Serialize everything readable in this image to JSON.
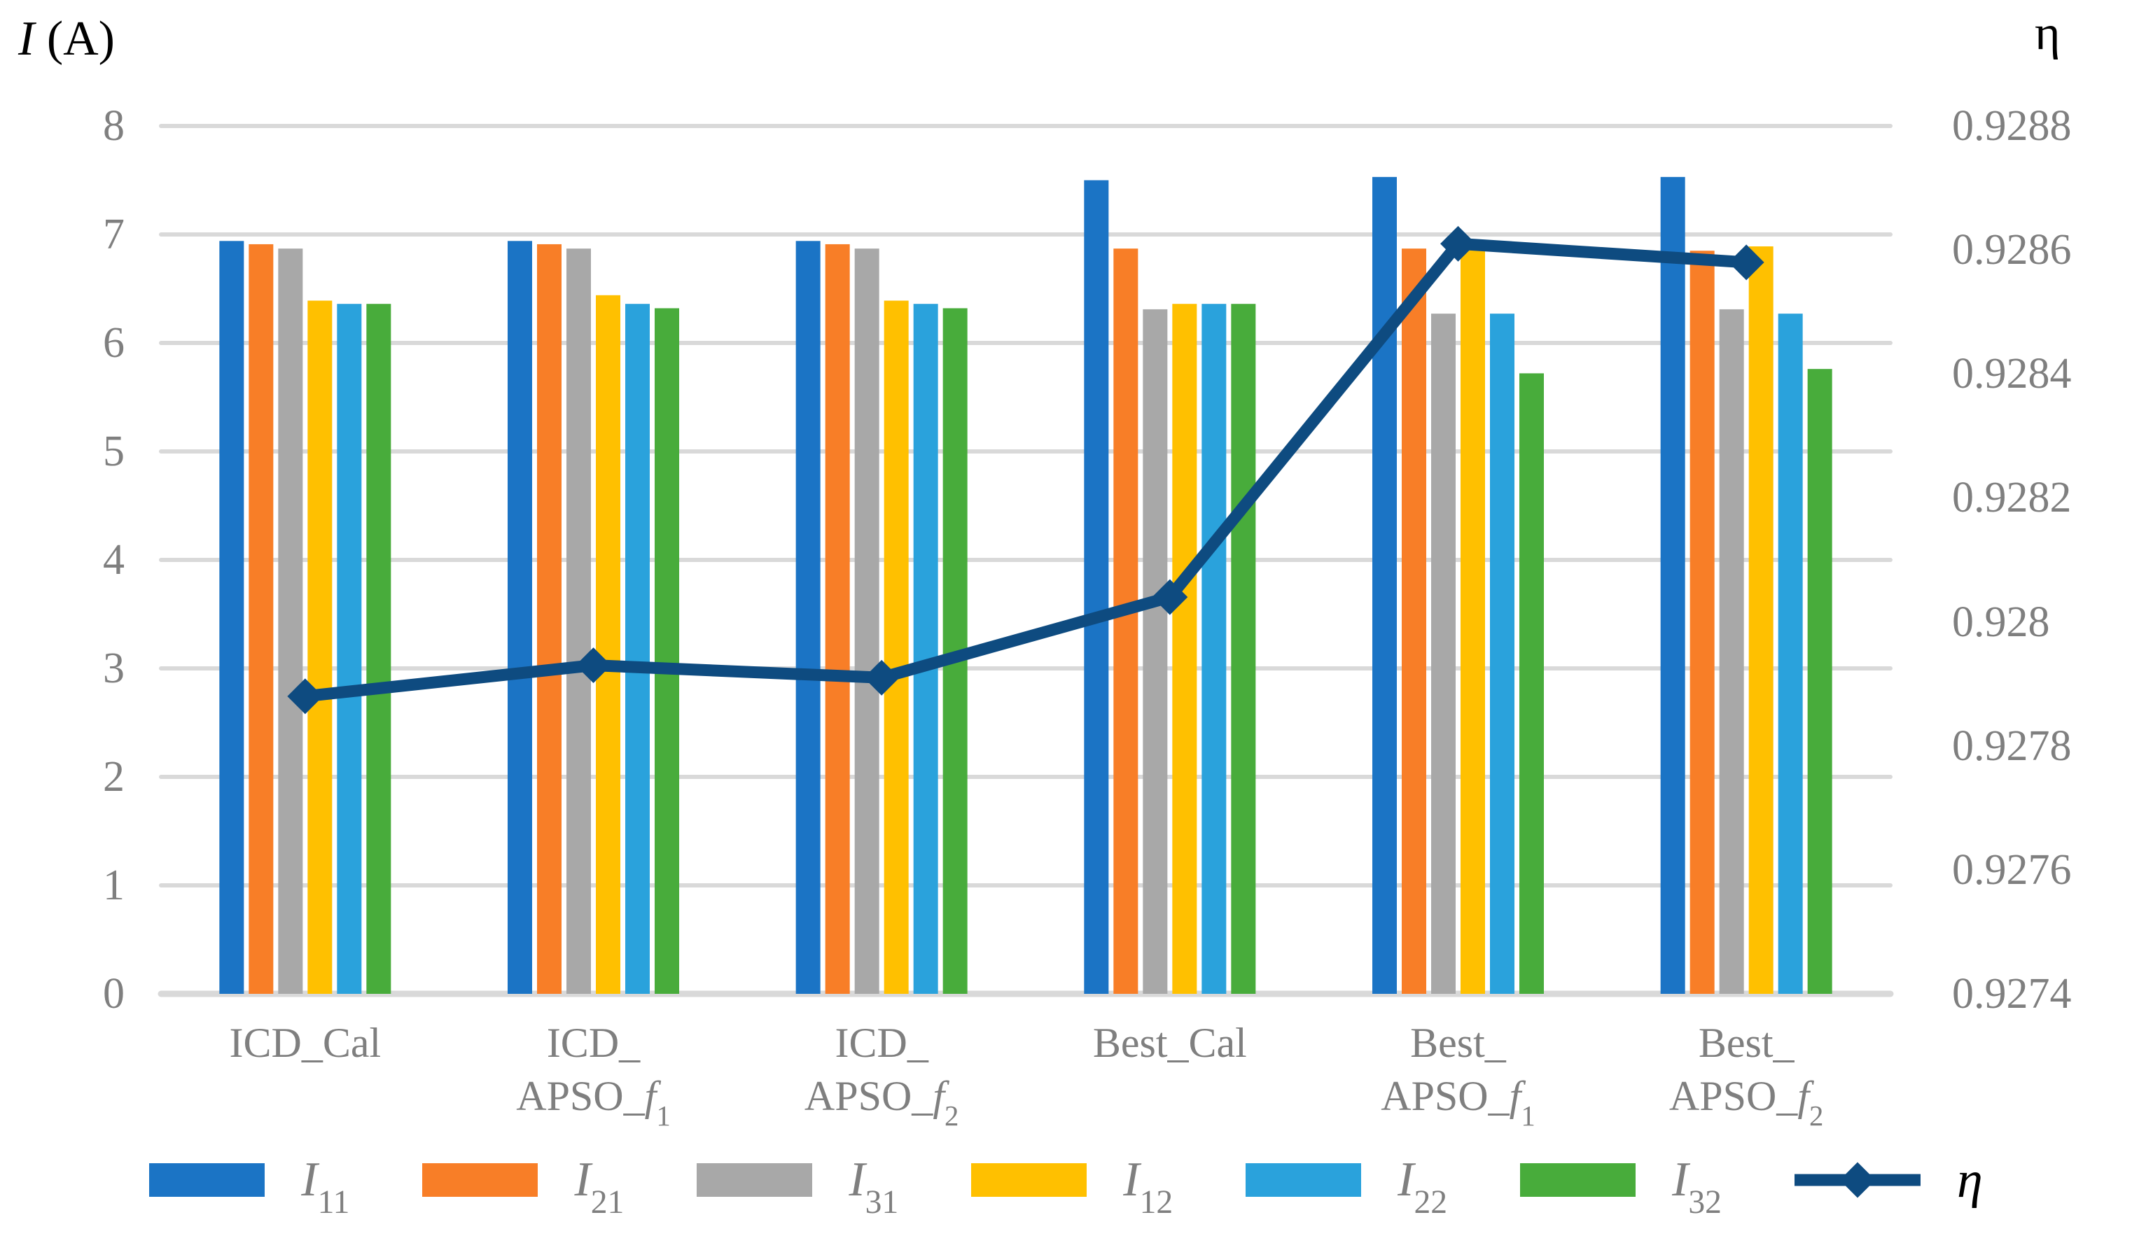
{
  "chart_data": {
    "type": "combo",
    "bar_type": "grouped",
    "title": "",
    "categories": [
      "ICD_Cal",
      "ICD_APSO_f1",
      "ICD_APSO_f2",
      "Best_Cal",
      "Best_APSO_f1",
      "Best_APSO_f2"
    ],
    "category_label_lines": [
      [
        "ICD_Cal"
      ],
      [
        "ICD_",
        "APSO_f1"
      ],
      [
        "ICD_",
        "APSO_f2"
      ],
      [
        "Best_Cal"
      ],
      [
        "Best_",
        "APSO_f1"
      ],
      [
        "Best_",
        "APSO_f2"
      ]
    ],
    "series": [
      {
        "name": "I11",
        "color": "#1B74C5",
        "values": [
          6.94,
          6.94,
          6.94,
          7.5,
          7.53,
          7.53
        ]
      },
      {
        "name": "I21",
        "color": "#F87E27",
        "values": [
          6.91,
          6.91,
          6.91,
          6.87,
          6.87,
          6.85
        ]
      },
      {
        "name": "I31",
        "color": "#A8A8A8",
        "values": [
          6.87,
          6.87,
          6.87,
          6.31,
          6.27,
          6.31
        ]
      },
      {
        "name": "I12",
        "color": "#FFC000",
        "values": [
          6.39,
          6.44,
          6.39,
          6.36,
          6.86,
          6.89
        ]
      },
      {
        "name": "I22",
        "color": "#2AA2DC",
        "values": [
          6.36,
          6.36,
          6.36,
          6.36,
          6.27,
          6.27
        ]
      },
      {
        "name": "I32",
        "color": "#48AC3B",
        "values": [
          6.36,
          6.32,
          6.32,
          6.36,
          5.72,
          5.76
        ]
      }
    ],
    "line_series": {
      "name": "η",
      "color": "#0E4B80",
      "values": [
        0.92788,
        0.92793,
        0.92791,
        0.92804,
        0.92861,
        0.92858
      ]
    },
    "left_axis": {
      "title": "I (A)",
      "min": 0,
      "max": 8,
      "tick_labels": [
        "8",
        "7",
        "6",
        "5",
        "4",
        "3",
        "2",
        "1",
        "0"
      ]
    },
    "right_axis": {
      "title": "η",
      "min": 0.9274,
      "max": 0.9288,
      "tick_labels": [
        "0.9288",
        "0.9286",
        "0.9284",
        "0.9282",
        "0.928",
        "0.9278",
        "0.9276",
        "0.9274"
      ]
    },
    "grid": true,
    "legend_position": "bottom"
  },
  "colors": {
    "background": "#FFFFFF",
    "gridline": "#D9D9D9",
    "tick_text": "#7F7F7F",
    "axis_title_text": "#000000",
    "line": "#0E4B80"
  }
}
